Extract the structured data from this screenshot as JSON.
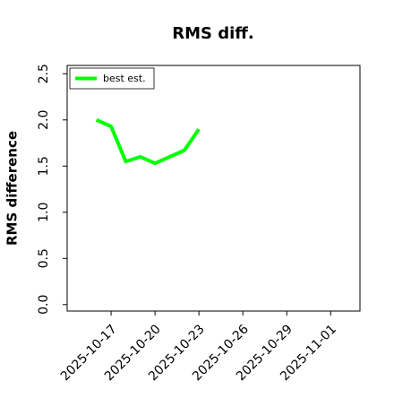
{
  "chart_data": {
    "type": "line",
    "title": "RMS diff.",
    "y_label": "RMS difference",
    "x": [
      "2025-10-16",
      "2025-10-17",
      "2025-10-18",
      "2025-10-19",
      "2025-10-20",
      "2025-10-21",
      "2025-10-22",
      "2025-10-23"
    ],
    "series": [
      {
        "name": "best est.",
        "color": "#00ff00",
        "values": [
          2.0,
          1.93,
          1.55,
          1.6,
          1.53,
          1.6,
          1.67,
          1.9
        ]
      }
    ],
    "xlim": [
      "2025-10-14",
      "2025-11-03"
    ],
    "xticks": [
      "2025-10-17",
      "2025-10-20",
      "2025-10-23",
      "2025-10-26",
      "2025-10-29",
      "2025-11-01"
    ],
    "ylim": [
      -0.07,
      2.59
    ],
    "yticks": [
      {
        "value": 0,
        "label": "0.0"
      },
      0.5,
      {
        "value": 1,
        "label": "1.0"
      },
      1.5,
      {
        "value": 2,
        "label": "2.0"
      },
      2.5
    ],
    "legend": "upper left"
  }
}
